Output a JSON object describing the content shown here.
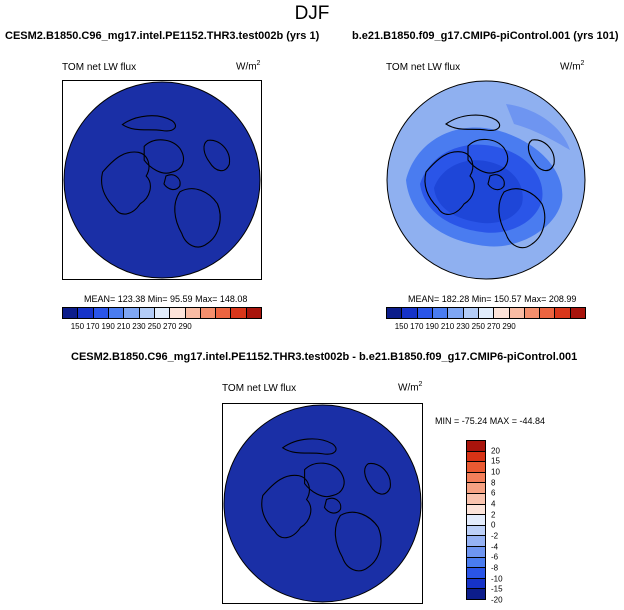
{
  "title": "DJF",
  "panels": {
    "p1": {
      "case": "CESM2.B1850.C96_mg17.intel.PE1152.THR3.test002b (yrs 1)",
      "variable": "TOM net LW flux",
      "units": "W/m",
      "units_exp": "2",
      "stats": "MEAN= 123.38  Min=  95.59  Max= 148.08"
    },
    "p2": {
      "case": "b.e21.B1850.f09_g17.CMIP6-piControl.001 (yrs 101)",
      "variable": "TOM net LW flux",
      "units": "W/m",
      "units_exp": "2",
      "stats": "MEAN= 182.28  Min= 150.57  Max= 208.99"
    },
    "diff": {
      "case": "CESM2.B1850.C96_mg17.intel.PE1152.THR3.test002b - b.e21.B1850.f09_g17.CMIP6-piControl.001",
      "variable": "TOM net LW flux",
      "units": "W/m",
      "units_exp": "2",
      "stats": "MIN = -75.24 MAX = -44.84"
    }
  },
  "colors": {
    "abs_scale": [
      "#0c1d8b",
      "#1633c8",
      "#2a55e8",
      "#4a7cf0",
      "#7fa6f3",
      "#b3ccf7",
      "#e1ecfb",
      "#fce3d9",
      "#f9bba3",
      "#f48f6d",
      "#ec6440",
      "#d9371b",
      "#a8140c"
    ],
    "diff_scale": [
      "#0c1d8b",
      "#1633c8",
      "#2a55e8",
      "#4a7cf0",
      "#6e95f1",
      "#95b2f4",
      "#bcd0f8",
      "#e3ecfc",
      "#fce3d9",
      "#f9c3ae",
      "#f6a283",
      "#f37f5a",
      "#ea5a32",
      "#d73316",
      "#a8140c"
    ],
    "p1_map": "#1a2fa6",
    "diff_map": "#1a2fa6",
    "p2_base": "#8fb0f0"
  },
  "chart_data": [
    {
      "type": "heatmap",
      "projection": "north polar stereographic",
      "title": "CESM2.B1850.C96_mg17.intel.PE1152.THR3.test002b (yrs 1)",
      "variable": "TOM net LW flux",
      "units": "W/m2",
      "colorbar_levels": [
        150,
        170,
        190,
        210,
        230,
        250,
        270,
        290
      ],
      "mean": 123.38,
      "min": 95.59,
      "max": 148.08
    },
    {
      "type": "heatmap",
      "projection": "north polar stereographic",
      "title": "b.e21.B1850.f09_g17.CMIP6-piControl.001 (yrs 101)",
      "variable": "TOM net LW flux",
      "units": "W/m2",
      "colorbar_levels": [
        150,
        170,
        190,
        210,
        230,
        250,
        270,
        290
      ],
      "mean": 182.28,
      "min": 150.57,
      "max": 208.99
    },
    {
      "type": "heatmap",
      "projection": "north polar stereographic",
      "title": "CESM2.B1850.C96_mg17.intel.PE1152.THR3.test002b - b.e21.B1850.f09_g17.CMIP6-piControl.001",
      "variable": "TOM net LW flux",
      "units": "W/m2",
      "colorbar_levels": [
        -20,
        -15,
        -10,
        -8,
        -6,
        -4,
        -2,
        0,
        2,
        4,
        6,
        8,
        10,
        15,
        20
      ],
      "min": -75.24,
      "max": -44.84
    }
  ]
}
